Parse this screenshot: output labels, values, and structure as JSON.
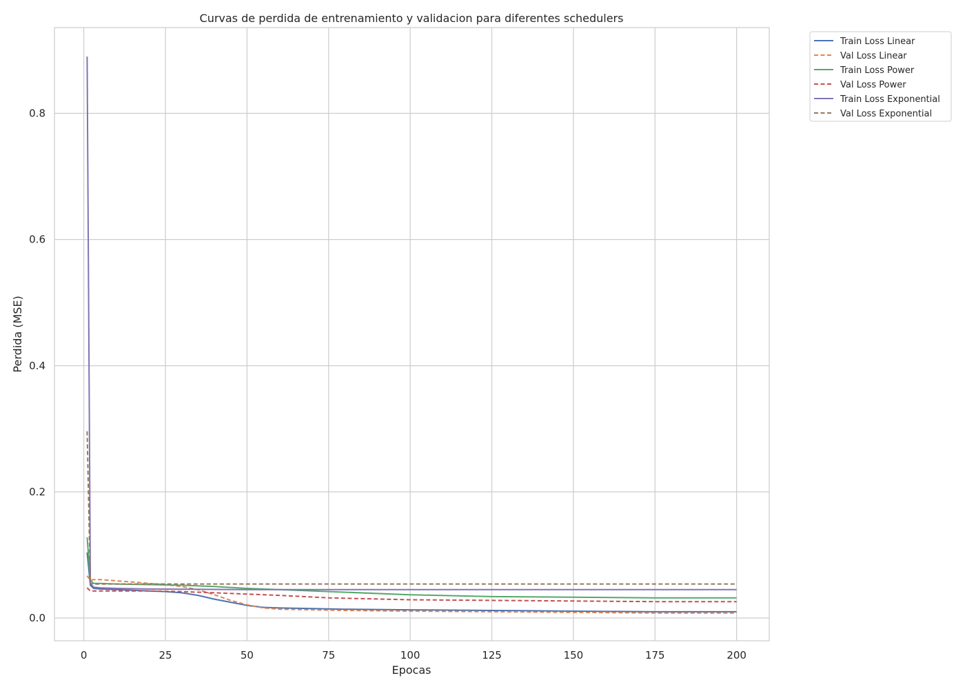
{
  "chart_data": {
    "type": "line",
    "title": "Curvas de perdida de entrenamiento y validacion para diferentes schedulers",
    "xlabel": "Epocas",
    "ylabel": "Perdida (MSE)",
    "xlim": [
      -9,
      210
    ],
    "ylim": [
      -0.036,
      0.936
    ],
    "xticks": [
      0,
      25,
      50,
      75,
      100,
      125,
      150,
      175,
      200
    ],
    "yticks": [
      0.0,
      0.2,
      0.4,
      0.6,
      0.8
    ],
    "xtick_labels": [
      "0",
      "25",
      "50",
      "75",
      "100",
      "125",
      "150",
      "175",
      "200"
    ],
    "ytick_labels": [
      "0.0",
      "0.2",
      "0.4",
      "0.6",
      "0.8"
    ],
    "grid": true,
    "legend_position": "outside-upper-right",
    "series": [
      {
        "name": "Train Loss Linear",
        "color": "#4c72b0",
        "dash": "solid",
        "x": [
          1,
          2,
          3,
          5,
          10,
          15,
          20,
          25,
          30,
          35,
          40,
          45,
          50,
          55,
          60,
          70,
          80,
          100,
          125,
          150,
          175,
          200
        ],
        "y": [
          0.104,
          0.052,
          0.047,
          0.046,
          0.045,
          0.044,
          0.043,
          0.042,
          0.04,
          0.036,
          0.03,
          0.025,
          0.02,
          0.017,
          0.016,
          0.015,
          0.014,
          0.013,
          0.012,
          0.011,
          0.01,
          0.01
        ]
      },
      {
        "name": "Val Loss Linear",
        "color": "#dd8452",
        "dash": "dashed",
        "x": [
          1,
          2,
          3,
          5,
          10,
          15,
          20,
          25,
          30,
          35,
          40,
          45,
          50,
          55,
          60,
          70,
          80,
          100,
          125,
          150,
          175,
          200
        ],
        "y": [
          0.067,
          0.06,
          0.061,
          0.061,
          0.059,
          0.057,
          0.055,
          0.053,
          0.05,
          0.045,
          0.037,
          0.028,
          0.021,
          0.016,
          0.014,
          0.013,
          0.012,
          0.011,
          0.01,
          0.009,
          0.008,
          0.008
        ]
      },
      {
        "name": "Train Loss Power",
        "color": "#55a868",
        "dash": "solid",
        "x": [
          1,
          2,
          3,
          5,
          10,
          20,
          30,
          40,
          50,
          60,
          75,
          100,
          125,
          150,
          175,
          200
        ],
        "y": [
          0.128,
          0.06,
          0.055,
          0.055,
          0.054,
          0.053,
          0.052,
          0.05,
          0.047,
          0.045,
          0.042,
          0.037,
          0.034,
          0.033,
          0.032,
          0.032
        ]
      },
      {
        "name": "Val Loss Power",
        "color": "#c44e52",
        "dash": "dashed",
        "x": [
          1,
          2,
          3,
          5,
          10,
          20,
          30,
          40,
          50,
          60,
          75,
          100,
          125,
          150,
          175,
          200
        ],
        "y": [
          0.048,
          0.043,
          0.043,
          0.043,
          0.043,
          0.043,
          0.042,
          0.04,
          0.038,
          0.036,
          0.032,
          0.029,
          0.028,
          0.027,
          0.026,
          0.026
        ]
      },
      {
        "name": "Train Loss Exponential",
        "color": "#8172b3",
        "dash": "solid",
        "x": [
          1,
          2,
          3,
          5,
          10,
          20,
          50,
          100,
          150,
          200
        ],
        "y": [
          0.89,
          0.055,
          0.049,
          0.048,
          0.047,
          0.046,
          0.045,
          0.045,
          0.045,
          0.045
        ]
      },
      {
        "name": "Val Loss Exponential",
        "color": "#937860",
        "dash": "dashed",
        "x": [
          1,
          2,
          3,
          5,
          10,
          20,
          50,
          100,
          150,
          200
        ],
        "y": [
          0.296,
          0.055,
          0.054,
          0.054,
          0.054,
          0.054,
          0.054,
          0.054,
          0.054,
          0.054
        ]
      }
    ]
  }
}
